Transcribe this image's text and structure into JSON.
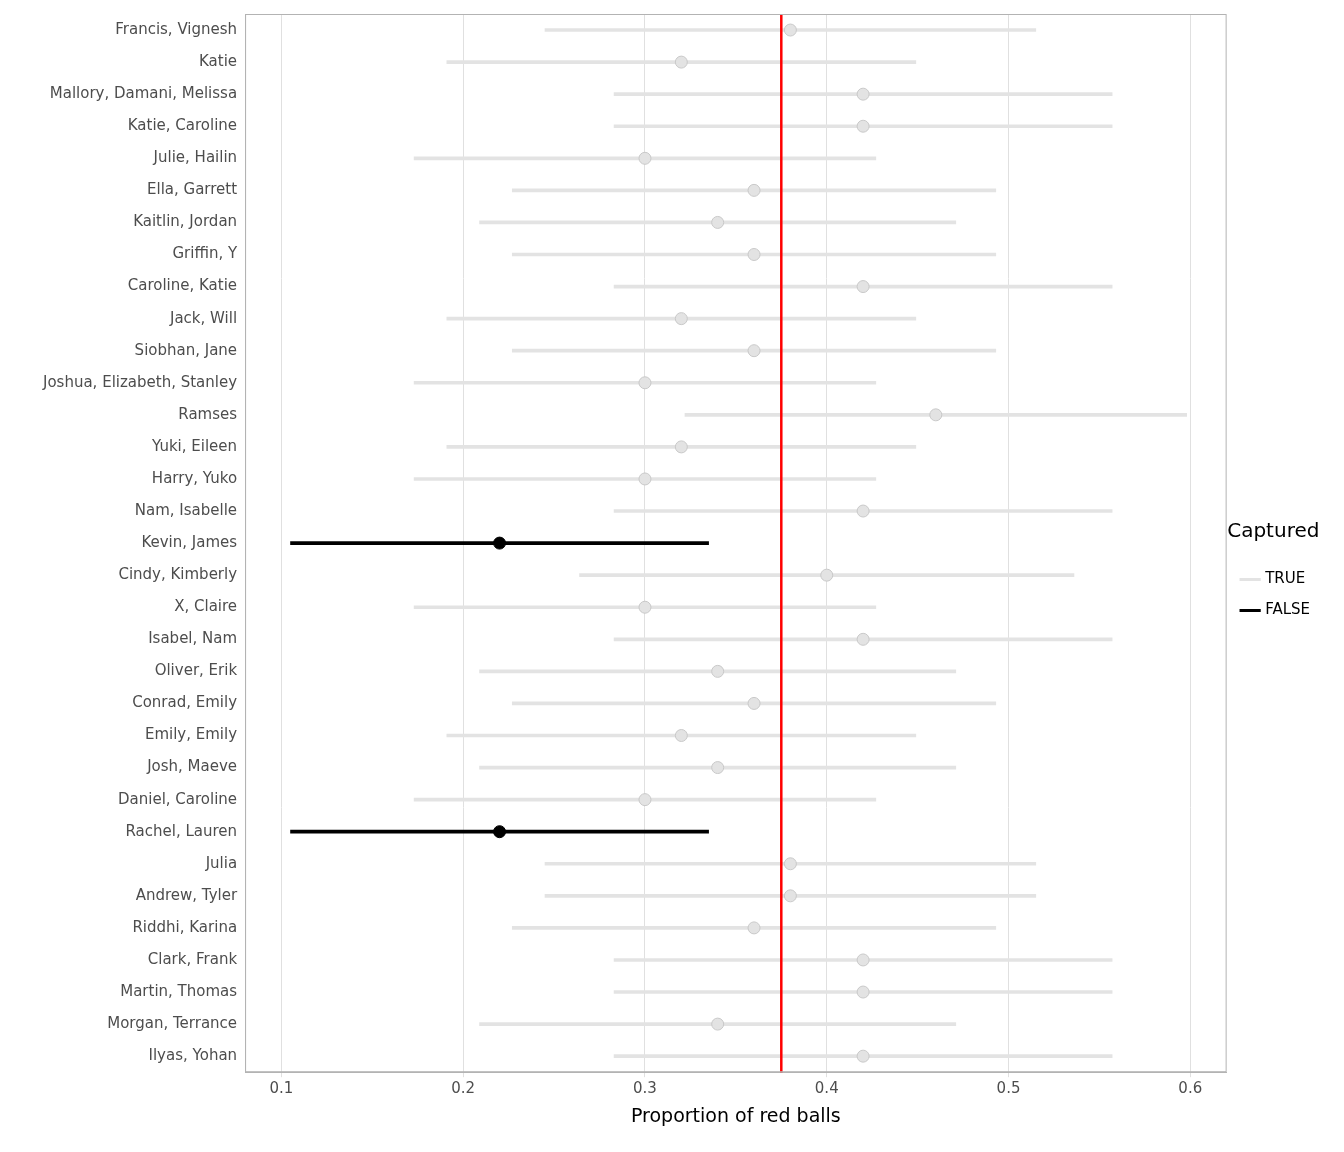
{
  "chart_data": {
    "type": "interval",
    "orientation": "horizontal",
    "x_label": "Proportion of red balls",
    "legend_title": "Captured",
    "legend": "right",
    "grid": true,
    "categories": [
      "Francis, Vignesh",
      "Katie",
      "Mallory, Damani, Melissa",
      "Katie, Caroline",
      "Julie, Hailin",
      "Ella, Garrett",
      "Kaitlin, Jordan",
      "Griffin, Y",
      "Caroline, Katie",
      "Jack, Will",
      "Siobhan, Jane",
      "Joshua, Elizabeth, Stanley",
      "Ramses",
      "Yuki, Eileen",
      "Harry, Yuko",
      "Nam, Isabelle",
      "Kevin, James",
      "Cindy, Kimberly",
      "X, Claire",
      "Isabel, Nam",
      "Oliver, Erik",
      "Conrad, Emily",
      "Emily, Emily",
      "Josh, Maeve",
      "Daniel, Caroline",
      "Rachel, Lauren",
      "Julia",
      "Andrew, Tyler",
      "Riddhi, Karina",
      "Clark, Frank",
      "Martin, Thomas",
      "Morgan, Terrance",
      "Ilyas, Yohan"
    ],
    "values": [
      0.38,
      0.32,
      0.42,
      0.42,
      0.3,
      0.36,
      0.34,
      0.36,
      0.42,
      0.32,
      0.36,
      0.3,
      0.46,
      0.32,
      0.3,
      0.42,
      0.22,
      0.4,
      0.3,
      0.42,
      0.34,
      0.36,
      0.32,
      0.34,
      0.3,
      0.22,
      0.38,
      0.38,
      0.36,
      0.42,
      0.42,
      0.34,
      0.42
    ],
    "lower": [
      0.245,
      0.191,
      0.283,
      0.283,
      0.173,
      0.227,
      0.209,
      0.227,
      0.283,
      0.191,
      0.227,
      0.173,
      0.322,
      0.191,
      0.173,
      0.283,
      0.105,
      0.264,
      0.173,
      0.283,
      0.209,
      0.227,
      0.191,
      0.209,
      0.173,
      0.105,
      0.245,
      0.245,
      0.227,
      0.283,
      0.283,
      0.209,
      0.283
    ],
    "upper": [
      0.515,
      0.449,
      0.557,
      0.557,
      0.427,
      0.493,
      0.471,
      0.493,
      0.557,
      0.449,
      0.493,
      0.427,
      0.598,
      0.449,
      0.427,
      0.557,
      0.335,
      0.536,
      0.427,
      0.557,
      0.471,
      0.493,
      0.449,
      0.471,
      0.427,
      0.335,
      0.515,
      0.515,
      0.493,
      0.557,
      0.557,
      0.471,
      0.557
    ],
    "captured": [
      "TRUE",
      "TRUE",
      "TRUE",
      "TRUE",
      "TRUE",
      "TRUE",
      "TRUE",
      "TRUE",
      "TRUE",
      "TRUE",
      "TRUE",
      "TRUE",
      "TRUE",
      "TRUE",
      "TRUE",
      "TRUE",
      "FALSE",
      "TRUE",
      "TRUE",
      "TRUE",
      "TRUE",
      "TRUE",
      "TRUE",
      "TRUE",
      "TRUE",
      "FALSE",
      "TRUE",
      "TRUE",
      "TRUE",
      "TRUE",
      "TRUE",
      "TRUE",
      "TRUE"
    ],
    "series": [
      {
        "name": "TRUE",
        "color": "#e3e3e3"
      },
      {
        "name": "FALSE",
        "color": "#000000"
      }
    ],
    "reference_line": {
      "value": 0.375,
      "color": "#ff0000"
    },
    "xlim": [
      0.08,
      0.62
    ],
    "xticks": [
      0.1,
      0.2,
      0.3,
      0.4,
      0.5,
      0.6
    ]
  }
}
